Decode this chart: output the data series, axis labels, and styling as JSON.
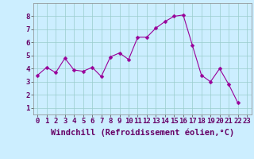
{
  "x": [
    0,
    1,
    2,
    3,
    4,
    5,
    6,
    7,
    8,
    9,
    10,
    11,
    12,
    13,
    14,
    15,
    16,
    17,
    18,
    19,
    20,
    21,
    22,
    23
  ],
  "y": [
    3.5,
    4.1,
    3.7,
    4.8,
    3.9,
    3.8,
    4.1,
    3.4,
    4.9,
    5.2,
    4.7,
    6.4,
    6.4,
    7.1,
    7.6,
    8.0,
    8.1,
    5.8,
    3.5,
    3.0,
    4.0,
    2.8,
    1.4,
    null
  ],
  "line_color": "#990099",
  "marker": "D",
  "marker_size": 2.5,
  "bg_color": "#cceeff",
  "grid_color": "#99cccc",
  "xlabel": "Windchill (Refroidissement éolien,°C)",
  "xlim": [
    -0.5,
    23.5
  ],
  "ylim": [
    0.5,
    9.0
  ],
  "yticks": [
    1,
    2,
    3,
    4,
    5,
    6,
    7,
    8
  ],
  "xticks": [
    0,
    1,
    2,
    3,
    4,
    5,
    6,
    7,
    8,
    9,
    10,
    11,
    12,
    13,
    14,
    15,
    16,
    17,
    18,
    19,
    20,
    21,
    22,
    23
  ],
  "tick_label_size": 6.5,
  "xlabel_size": 7.5
}
